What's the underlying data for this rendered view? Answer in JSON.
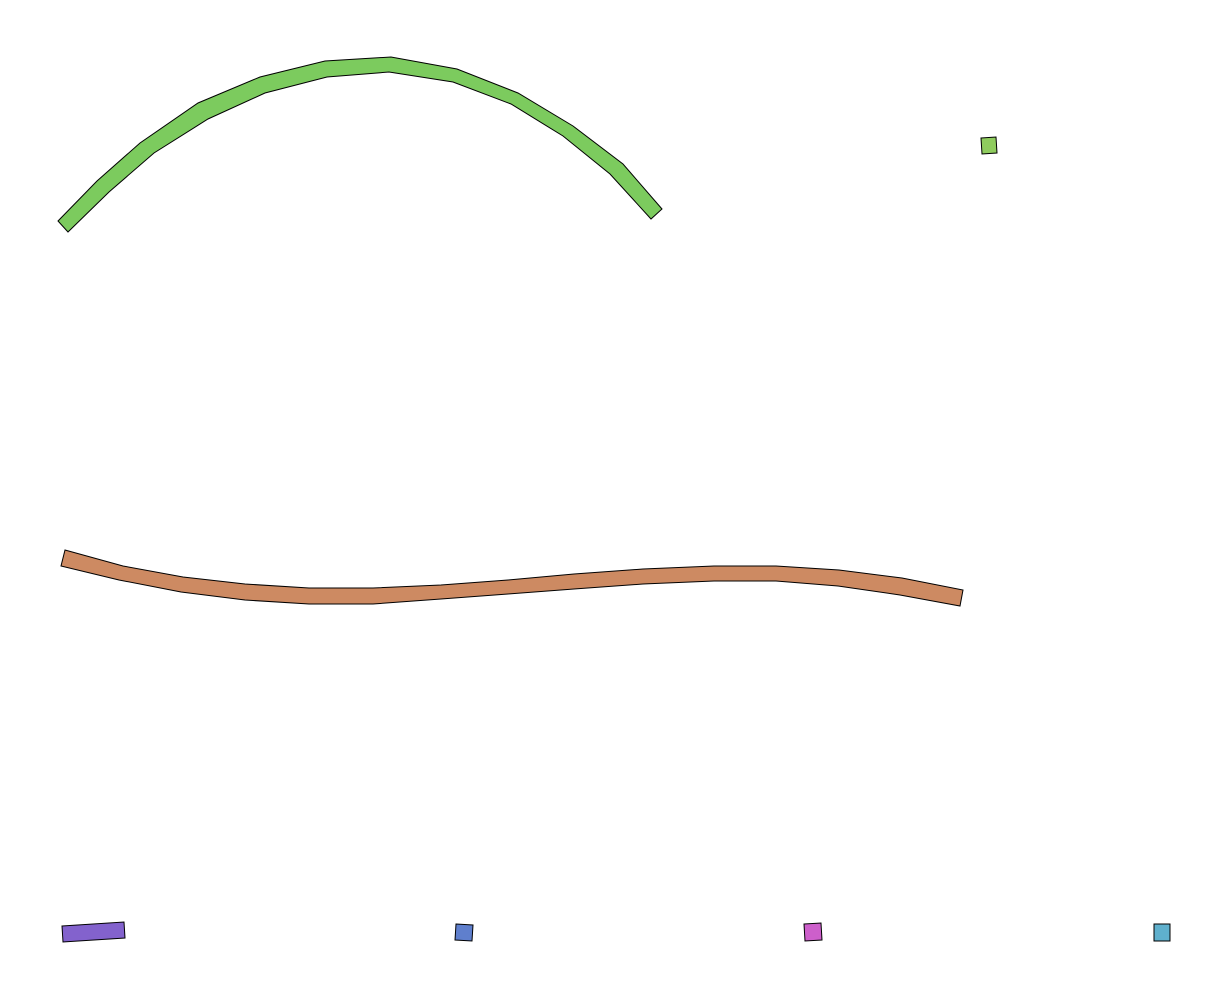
{
  "figure": {
    "background": "#ffffff",
    "outline_color": "#000000"
  },
  "shapes": [
    {
      "id": "arc",
      "kind": "curved-band",
      "fill": "#7ccb5e"
    },
    {
      "id": "wave",
      "kind": "curved-band",
      "fill": "#cd8a62"
    },
    {
      "id": "green-square",
      "kind": "square",
      "fill": "#8fcc5e"
    },
    {
      "id": "purple-rect",
      "kind": "rectangle",
      "fill": "#8362cd"
    },
    {
      "id": "blue-square",
      "kind": "square",
      "fill": "#5f7fcd"
    },
    {
      "id": "magenta-square",
      "kind": "square",
      "fill": "#cd5fcb"
    },
    {
      "id": "cyan-square",
      "kind": "square",
      "fill": "#5fb0cd"
    }
  ]
}
